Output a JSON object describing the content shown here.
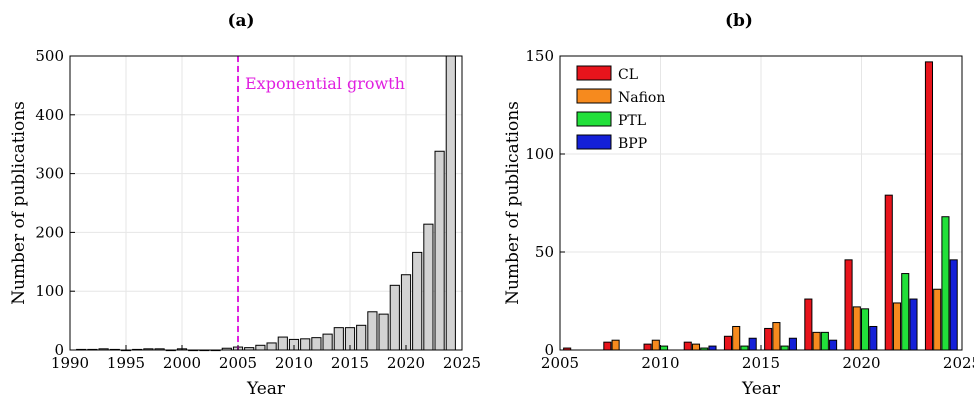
{
  "chart_data": [
    {
      "panel": "(a)",
      "type": "bar",
      "xlabel": "Year",
      "ylabel": "Number of publications",
      "xlim": [
        1990,
        2025
      ],
      "ylim": [
        0,
        500
      ],
      "xticks": [
        1990,
        1995,
        2000,
        2005,
        2010,
        2015,
        2020,
        2025
      ],
      "yticks": [
        0,
        100,
        200,
        300,
        400,
        500
      ],
      "grid": true,
      "bar_color": "#d3d3d3",
      "x": [
        1991,
        1992,
        1993,
        1994,
        1995,
        1996,
        1997,
        1998,
        1999,
        2000,
        2001,
        2002,
        2003,
        2004,
        2005,
        2006,
        2007,
        2008,
        2009,
        2010,
        2011,
        2012,
        2013,
        2014,
        2015,
        2016,
        2017,
        2018,
        2019,
        2020,
        2021,
        2022,
        2023,
        2024
      ],
      "values": [
        1,
        1,
        2,
        1,
        0,
        1,
        2,
        2,
        0,
        2,
        0,
        0,
        0,
        3,
        5,
        4,
        8,
        12,
        22,
        18,
        19,
        21,
        27,
        38,
        38,
        42,
        65,
        61,
        110,
        128,
        166,
        214,
        338,
        500
      ],
      "annotation": {
        "text": "Exponential growth",
        "x": 2005,
        "color": "#e020e0"
      }
    },
    {
      "panel": "(b)",
      "type": "bar",
      "xlabel": "Year",
      "ylabel": "Number of publications",
      "xlim": [
        2005,
        2025
      ],
      "ylim": [
        0,
        150
      ],
      "xticks": [
        2005,
        2010,
        2015,
        2020,
        2025
      ],
      "yticks": [
        0,
        50,
        100,
        150
      ],
      "grid": true,
      "legend_position": "top-left",
      "x": [
        2006,
        2008,
        2010,
        2012,
        2014,
        2016,
        2018,
        2020,
        2022,
        2024
      ],
      "series": [
        {
          "name": "CL",
          "color": "#e8141c",
          "values": [
            1,
            4,
            3,
            4,
            7,
            11,
            26,
            46,
            79,
            147
          ]
        },
        {
          "name": "Nafion",
          "color": "#f68a1e",
          "values": [
            0,
            5,
            5,
            3,
            12,
            14,
            9,
            22,
            24,
            31
          ]
        },
        {
          "name": "PTL",
          "color": "#22e03a",
          "values": [
            0,
            0,
            2,
            1,
            2,
            2,
            9,
            21,
            39,
            68
          ]
        },
        {
          "name": "BPP",
          "color": "#1420d8",
          "values": [
            0,
            0,
            0,
            2,
            6,
            6,
            5,
            12,
            26,
            46
          ]
        }
      ]
    }
  ]
}
